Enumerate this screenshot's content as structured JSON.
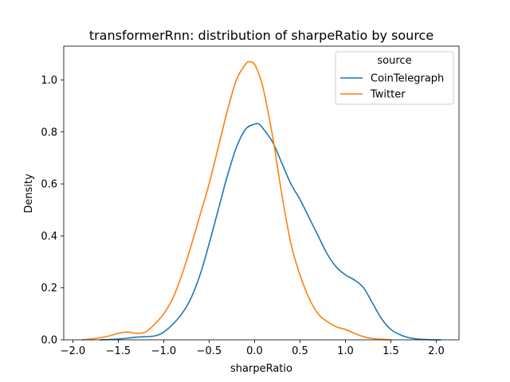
{
  "chart_data": {
    "type": "line",
    "title": "transformerRnn: distribution of sharpeRatio by source",
    "xlabel": "sharpeRatio",
    "ylabel": "Density",
    "xlim": [
      -2.1,
      2.25
    ],
    "ylim": [
      0.0,
      1.13
    ],
    "xticks": [
      -2.0,
      -1.5,
      -1.0,
      -0.5,
      0.0,
      0.5,
      1.0,
      1.5,
      2.0
    ],
    "xtick_labels": [
      "−2.0",
      "−1.5",
      "−1.0",
      "−0.5",
      "0.0",
      "0.5",
      "1.0",
      "1.5",
      "2.0"
    ],
    "yticks": [
      0.0,
      0.2,
      0.4,
      0.6,
      0.8,
      1.0
    ],
    "ytick_labels": [
      "0.0",
      "0.2",
      "0.4",
      "0.6",
      "0.8",
      "1.0"
    ],
    "grid": false,
    "legend": {
      "title": "source",
      "placement": "top-right"
    },
    "series": [
      {
        "name": "CoinTelegraph",
        "color": "#1f77b4",
        "x": [
          -1.7,
          -1.5,
          -1.3,
          -1.1,
          -1.0,
          -0.9,
          -0.8,
          -0.7,
          -0.6,
          -0.5,
          -0.4,
          -0.3,
          -0.2,
          -0.1,
          0.0,
          0.05,
          0.1,
          0.2,
          0.3,
          0.4,
          0.5,
          0.6,
          0.7,
          0.8,
          0.9,
          1.0,
          1.1,
          1.2,
          1.3,
          1.4,
          1.5,
          1.6,
          1.7,
          1.8,
          1.9,
          2.0,
          2.05
        ],
        "y": [
          0.0,
          0.003,
          0.01,
          0.015,
          0.03,
          0.06,
          0.1,
          0.16,
          0.25,
          0.37,
          0.5,
          0.63,
          0.74,
          0.81,
          0.83,
          0.83,
          0.81,
          0.76,
          0.68,
          0.6,
          0.54,
          0.47,
          0.4,
          0.33,
          0.28,
          0.25,
          0.23,
          0.2,
          0.14,
          0.08,
          0.04,
          0.02,
          0.008,
          0.003,
          0.001,
          0.0,
          0.0
        ]
      },
      {
        "name": "Twitter",
        "color": "#ff7f0e",
        "x": [
          -1.9,
          -1.8,
          -1.7,
          -1.6,
          -1.5,
          -1.4,
          -1.3,
          -1.2,
          -1.1,
          -1.0,
          -0.9,
          -0.8,
          -0.7,
          -0.6,
          -0.5,
          -0.4,
          -0.3,
          -0.2,
          -0.1,
          -0.05,
          0.0,
          0.05,
          0.1,
          0.2,
          0.3,
          0.4,
          0.5,
          0.6,
          0.7,
          0.8,
          0.9,
          1.0,
          1.1,
          1.2,
          1.3,
          1.4,
          1.5
        ],
        "y": [
          0.0,
          0.003,
          0.008,
          0.015,
          0.025,
          0.03,
          0.025,
          0.03,
          0.06,
          0.1,
          0.16,
          0.25,
          0.36,
          0.48,
          0.6,
          0.74,
          0.88,
          1.0,
          1.06,
          1.07,
          1.06,
          1.02,
          0.96,
          0.78,
          0.56,
          0.37,
          0.25,
          0.16,
          0.1,
          0.07,
          0.05,
          0.04,
          0.025,
          0.012,
          0.005,
          0.002,
          0.0
        ]
      }
    ]
  }
}
